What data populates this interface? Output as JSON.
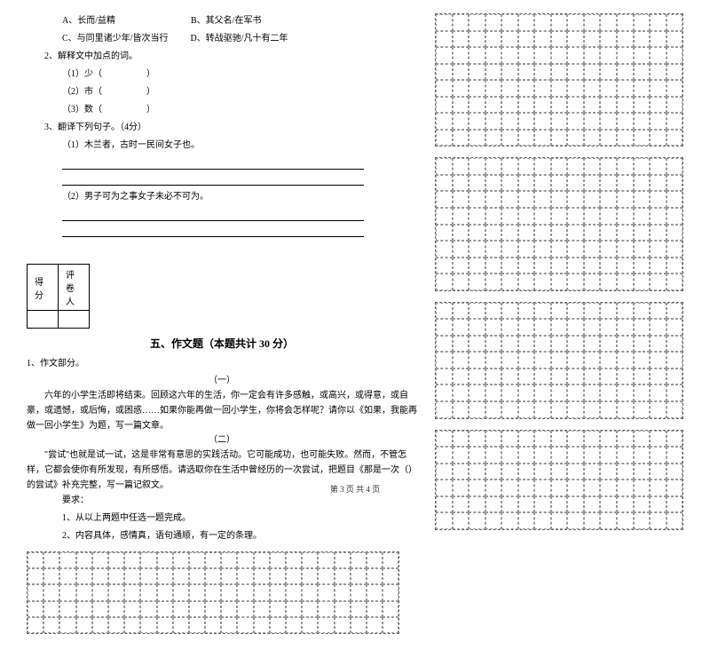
{
  "q1": {
    "optA": "A、长而/益精",
    "optB": "B、其父名/在军书",
    "optC": "C、与同里诸少年/皆次当行",
    "optD": "D、转战驱驰/凡十有二年"
  },
  "q2": {
    "title": "2、解释文中加点的词。",
    "items": [
      "（1）少（　　　　　）",
      "（2）市（　　　　　）",
      "（3）数（　　　　　）"
    ]
  },
  "q3": {
    "title": "3、翻译下列句子。（4分）",
    "items": [
      "（1）木兰者，古时一民间女子也。",
      "（2）男子可为之事女子未必不可为。"
    ]
  },
  "score": {
    "col1": "得分",
    "col2": "评卷人"
  },
  "section5": {
    "title": "五、作文题（本题共计 30 分）",
    "intro_label": "1、作文部分。",
    "part1_label": "（一）",
    "part1_text": "六年的小学生活即将结束。回顾这六年的生活，你一定会有许多感触，或高兴，或得意，或自豪，或遗憾，或后悔，或困惑……如果你能再做一回小学生，你将会怎样呢？请你以《如果，我能再做一回小学生》为题，写一篇文章。",
    "part2_label": "（二）",
    "part2_text": "\"尝试\"也就是试一试，这是非常有意思的实践活动。它可能成功，也可能失败。然而，不管怎样，它都会使你有所发现，有所感悟。请选取你在生活中曾经历的一次尝试，把题目《那是一次（）的尝试》补充完整，写一篇记叙文。",
    "req_label": "要求：",
    "req1": "1、从以上两题中任选一题完成。",
    "req2": "2、内容具体，感情真，语句通顺，有一定的条理。"
  },
  "footer": "第 3 页 共 4 页",
  "grid": {
    "left_cols": 23,
    "left_rows": 5,
    "right_cols": 15,
    "right_block1_rows": 8,
    "right_block2_rows": 8,
    "right_block3_rows": 7,
    "right_block4_rows": 6
  }
}
